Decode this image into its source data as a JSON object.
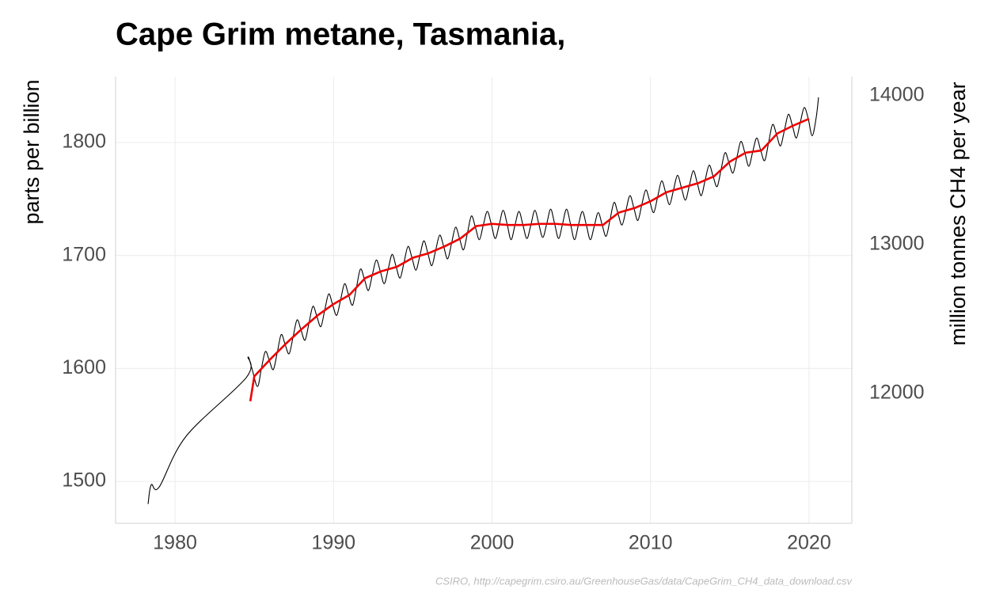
{
  "chart_data": {
    "type": "line",
    "title": "Cape Grim metane, Tasmania,",
    "y_label": "parts per billion",
    "y2_label": "million tonnes CH4 per year",
    "caption": "CSIRO, http://capegrim.csiro.au/GreenhouseGas/data/CapeGrim_CH4_data_download.csv",
    "xlim": [
      1976.25,
      2022.7
    ],
    "xticks": [
      1980,
      1990,
      2000,
      2010,
      2020
    ],
    "ylim": [
      1462.9,
      1858.2
    ],
    "yticks": [
      1500,
      1600,
      1700,
      1800
    ],
    "y2lim": [
      11127.7,
      14127.7
    ],
    "y2ticks": [
      12000,
      13000,
      14000
    ],
    "grid": true,
    "series": [
      {
        "color": "#000000",
        "smooth": true,
        "x": [
          1978.3,
          1978.5,
          1979,
          1980.7,
          1984.5,
          1984.6,
          1984.85,
          1985.2,
          1985.45,
          1985.7,
          1985.95,
          1986.2,
          1986.45,
          1986.7,
          1986.95,
          1987.2,
          1987.45,
          1987.7,
          1987.95,
          1988.2,
          1988.45,
          1988.7,
          1988.95,
          1989.2,
          1989.45,
          1989.7,
          1989.95,
          1990.2,
          1990.45,
          1990.7,
          1990.95,
          1991.2,
          1991.45,
          1991.7,
          1991.95,
          1992.2,
          1992.45,
          1992.7,
          1992.95,
          1993.2,
          1993.45,
          1993.7,
          1993.95,
          1994.2,
          1994.45,
          1994.7,
          1994.95,
          1995.2,
          1995.45,
          1995.7,
          1995.95,
          1996.2,
          1996.45,
          1996.7,
          1996.95,
          1997.2,
          1997.45,
          1997.7,
          1997.95,
          1998.2,
          1998.45,
          1998.7,
          1998.95,
          1999.2,
          1999.45,
          1999.7,
          1999.95,
          2000.2,
          2000.45,
          2000.7,
          2000.95,
          2001.2,
          2001.45,
          2001.7,
          2001.95,
          2002.2,
          2002.45,
          2002.7,
          2002.95,
          2003.2,
          2003.45,
          2003.7,
          2003.95,
          2004.2,
          2004.45,
          2004.7,
          2004.95,
          2005.2,
          2005.45,
          2005.7,
          2005.95,
          2006.2,
          2006.45,
          2006.7,
          2006.95,
          2007.2,
          2007.45,
          2007.7,
          2007.95,
          2008.2,
          2008.45,
          2008.7,
          2008.95,
          2009.2,
          2009.45,
          2009.7,
          2009.95,
          2010.2,
          2010.45,
          2010.7,
          2010.95,
          2011.2,
          2011.45,
          2011.7,
          2011.95,
          2012.2,
          2012.45,
          2012.7,
          2012.95,
          2013.2,
          2013.45,
          2013.7,
          2013.95,
          2014.2,
          2014.45,
          2014.7,
          2014.95,
          2015.2,
          2015.45,
          2015.7,
          2015.95,
          2016.2,
          2016.45,
          2016.7,
          2016.95,
          2017.2,
          2017.45,
          2017.7,
          2017.95,
          2018.2,
          2018.45,
          2018.7,
          2018.95,
          2019.2,
          2019.45,
          2019.7,
          2019.95,
          2020.2,
          2020.45,
          2020.6
        ],
        "values": [
          1480,
          1497,
          1495,
          1540,
          1592,
          1610,
          1600,
          1584,
          1600,
          1615,
          1607,
          1599,
          1614,
          1630,
          1621,
          1613,
          1628,
          1643,
          1634,
          1625,
          1640,
          1655,
          1646,
          1637,
          1652,
          1666,
          1656,
          1647,
          1661,
          1675,
          1665,
          1656,
          1672,
          1688,
          1679,
          1669,
          1683,
          1696,
          1686,
          1675,
          1688,
          1701,
          1690,
          1680,
          1694,
          1708,
          1698,
          1687,
          1700,
          1713,
          1702,
          1691,
          1705,
          1718,
          1708,
          1697,
          1711,
          1725,
          1715,
          1705,
          1720,
          1735,
          1725,
          1714,
          1727,
          1739,
          1728,
          1715,
          1727,
          1740,
          1728,
          1714,
          1727,
          1739,
          1727,
          1715,
          1727,
          1740,
          1728,
          1716,
          1728,
          1741,
          1728,
          1715,
          1728,
          1741,
          1728,
          1714,
          1727,
          1739,
          1727,
          1714,
          1726,
          1738,
          1727,
          1717,
          1732,
          1747,
          1737,
          1727,
          1740,
          1753,
          1742,
          1731,
          1745,
          1758,
          1748,
          1738,
          1752,
          1766,
          1756,
          1745,
          1758,
          1771,
          1760,
          1749,
          1762,
          1775,
          1764,
          1753,
          1767,
          1780,
          1770,
          1761,
          1776,
          1791,
          1782,
          1773,
          1787,
          1801,
          1791,
          1779,
          1792,
          1804,
          1793,
          1784,
          1800,
          1816,
          1807,
          1797,
          1811,
          1825,
          1815,
          1804,
          1818,
          1831,
          1821,
          1806,
          1822,
          1840
        ]
      },
      {
        "color": "#ee0000",
        "smooth": false,
        "x": [
          1984.75,
          1985,
          1986,
          1987,
          1988,
          1989,
          1990,
          1991,
          1992,
          1993,
          1994,
          1995,
          1996,
          1997,
          1998,
          1999,
          2000,
          2001,
          2002,
          2003,
          2004,
          2005,
          2006,
          2007,
          2008,
          2009,
          2010,
          2011,
          2012,
          2013,
          2014,
          2015,
          2016,
          2017,
          2018,
          2019,
          2020
        ],
        "values": [
          1571,
          1593,
          1608,
          1622,
          1635,
          1647,
          1657,
          1665,
          1680,
          1686,
          1690,
          1698,
          1702,
          1708,
          1715,
          1726,
          1728,
          1727,
          1727,
          1728,
          1728,
          1727,
          1727,
          1727,
          1738,
          1742,
          1748,
          1756,
          1760,
          1764,
          1770,
          1783,
          1791,
          1793,
          1808,
          1815,
          1821
        ]
      }
    ]
  }
}
